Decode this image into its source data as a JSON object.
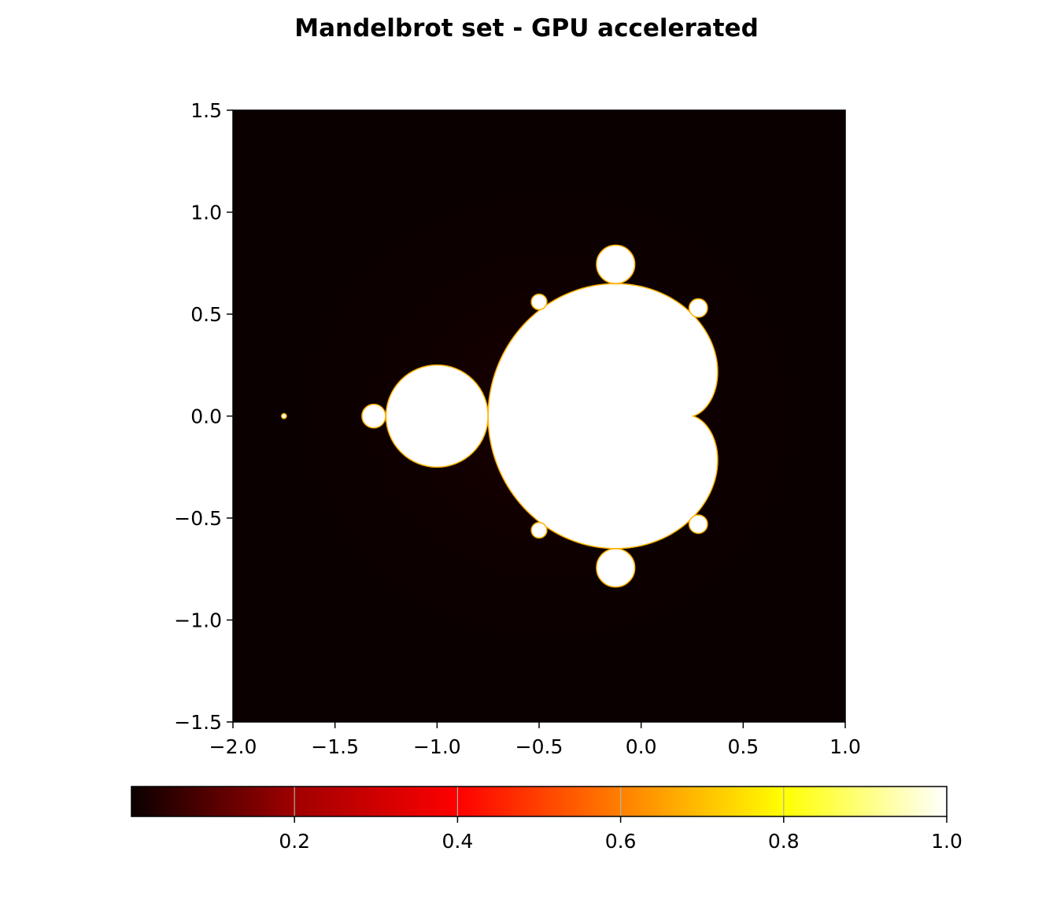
{
  "chart_data": {
    "type": "heatmap",
    "title": "Mandelbrot set - GPU accelerated",
    "xlabel": "",
    "ylabel": "",
    "xlim": [
      -2.0,
      1.0
    ],
    "ylim": [
      -1.5,
      1.5
    ],
    "x_ticks": [
      "−2.0",
      "−1.5",
      "−1.0",
      "−0.5",
      "0.0",
      "0.5",
      "1.0"
    ],
    "x_tick_values": [
      -2.0,
      -1.5,
      -1.0,
      -0.5,
      0.0,
      0.5,
      1.0
    ],
    "y_ticks": [
      "1.5",
      "1.0",
      "0.5",
      "0.0",
      "−0.5",
      "−1.0",
      "−1.5"
    ],
    "y_tick_values": [
      1.5,
      1.0,
      0.5,
      0.0,
      -0.5,
      -1.0,
      -1.5
    ],
    "colormap": "hot",
    "colormap_stops": [
      "#0b0000",
      "#a00000",
      "#ff0000",
      "#ff7f00",
      "#ffff00",
      "#ffffff"
    ],
    "colorbar": {
      "orientation": "horizontal",
      "range": [
        0.0,
        1.0
      ],
      "ticks": [
        "0.2",
        "0.4",
        "0.6",
        "0.8",
        "1.0"
      ],
      "tick_values": [
        0.2,
        0.4,
        0.6,
        0.8,
        1.0
      ]
    },
    "regions": [
      {
        "shape": "cardioid",
        "cx": -0.1,
        "cy": 0.0,
        "value": 1.0
      },
      {
        "shape": "disk",
        "cx": -1.0,
        "cy": 0.0,
        "r": 0.25,
        "value": 1.0
      },
      {
        "shape": "disk",
        "cx": -0.125,
        "cy": 0.744,
        "r": 0.094,
        "value": 1.0
      },
      {
        "shape": "disk",
        "cx": -0.125,
        "cy": -0.744,
        "r": 0.094,
        "value": 1.0
      },
      {
        "shape": "disk",
        "cx": -1.31,
        "cy": 0.0,
        "r": 0.058,
        "value": 1.0
      },
      {
        "shape": "disk",
        "cx": 0.28,
        "cy": 0.53,
        "r": 0.045,
        "value": 1.0
      },
      {
        "shape": "disk",
        "cx": 0.28,
        "cy": -0.53,
        "r": 0.045,
        "value": 1.0
      },
      {
        "shape": "disk",
        "cx": -0.5,
        "cy": 0.56,
        "r": 0.038,
        "value": 1.0
      },
      {
        "shape": "disk",
        "cx": -0.5,
        "cy": -0.56,
        "r": 0.038,
        "value": 1.0
      },
      {
        "shape": "disk",
        "cx": -1.75,
        "cy": 0.0,
        "r": 0.012,
        "value": 1.0
      }
    ],
    "background_value": 0.0
  }
}
